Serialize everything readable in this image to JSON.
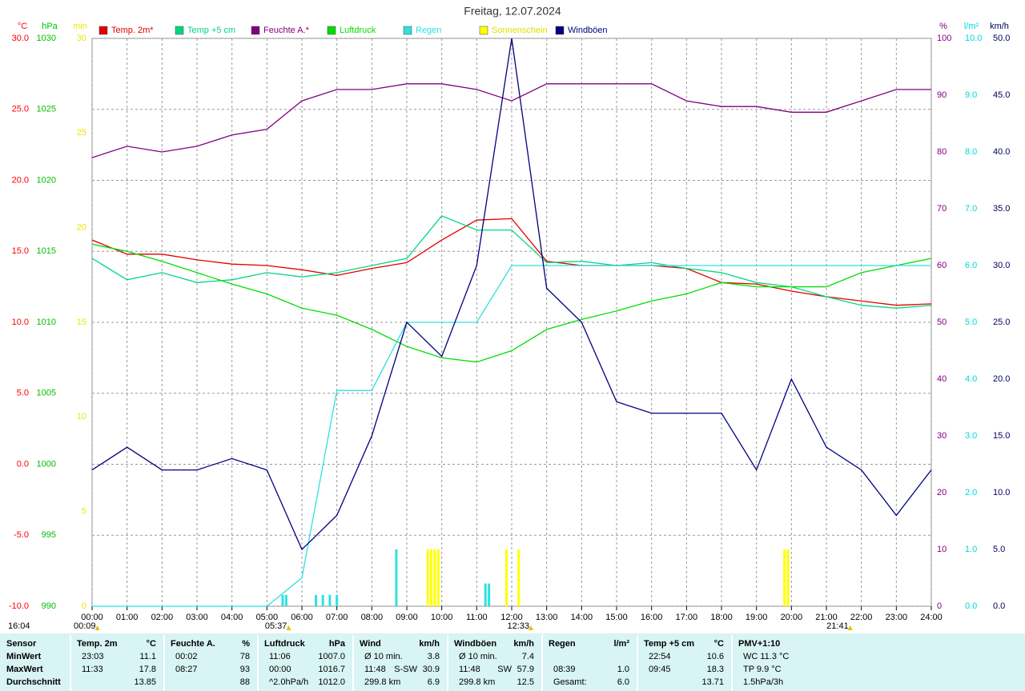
{
  "chart_data": {
    "type": "line",
    "title": "Freitag, 12.07.2024",
    "updated": "16:04",
    "grid": true,
    "xlim": [
      0,
      24
    ],
    "xticks": [
      {
        "value": 0,
        "label": "00:00"
      },
      {
        "value": 1,
        "label": "01:00"
      },
      {
        "value": 2,
        "label": "02:00"
      },
      {
        "value": 3,
        "label": "03:00"
      },
      {
        "value": 4,
        "label": "04:00"
      },
      {
        "value": 5,
        "label": "05:00"
      },
      {
        "value": 6,
        "label": "06:00"
      },
      {
        "value": 7,
        "label": "07:00"
      },
      {
        "value": 8,
        "label": "08:00"
      },
      {
        "value": 9,
        "label": "09:00"
      },
      {
        "value": 10,
        "label": "10:00"
      },
      {
        "value": 11,
        "label": "11:00"
      },
      {
        "value": 12,
        "label": "12:00"
      },
      {
        "value": 13,
        "label": "13:00"
      },
      {
        "value": 14,
        "label": "14:00"
      },
      {
        "value": 15,
        "label": "15:00"
      },
      {
        "value": 16,
        "label": "16:00"
      },
      {
        "value": 17,
        "label": "17:00"
      },
      {
        "value": 18,
        "label": "18:00"
      },
      {
        "value": 19,
        "label": "19:00"
      },
      {
        "value": 20,
        "label": "20:00"
      },
      {
        "value": 21,
        "label": "21:00"
      },
      {
        "value": 22,
        "label": "22:00"
      },
      {
        "value": 23,
        "label": "23:00"
      },
      {
        "value": 24,
        "label": "24:00"
      }
    ],
    "x": [
      0,
      1,
      2,
      3,
      4,
      5,
      6,
      7,
      8,
      9,
      10,
      11,
      12,
      13,
      14,
      15,
      16,
      17,
      18,
      19,
      20,
      21,
      22,
      23,
      24
    ],
    "markers": [
      {
        "x": 0.15,
        "label": "00:09"
      },
      {
        "x": 5.62,
        "label": "05:37"
      },
      {
        "x": 12.55,
        "label": "12:33"
      },
      {
        "x": 21.68,
        "label": "21:41"
      }
    ],
    "axes": {
      "temp": {
        "label": "°C",
        "color": "#ff0000",
        "side": "left",
        "ylim": [
          -10,
          30
        ],
        "yticks": [
          {
            "value": -10,
            "label": "-10.0"
          },
          {
            "value": -5,
            "label": "-5.0"
          },
          {
            "value": 0,
            "label": "0.0"
          },
          {
            "value": 5,
            "label": "5.0"
          },
          {
            "value": 10,
            "label": "10.0"
          },
          {
            "value": 15,
            "label": "15.0"
          },
          {
            "value": 20,
            "label": "20.0"
          },
          {
            "value": 25,
            "label": "25.0"
          },
          {
            "value": 30,
            "label": "30.0"
          }
        ]
      },
      "hpa": {
        "label": "hPa",
        "color": "#00c000",
        "side": "left",
        "ylim": [
          990,
          1030
        ],
        "yticks": [
          990,
          995,
          1000,
          1005,
          1010,
          1015,
          1020,
          1025,
          1030
        ]
      },
      "min": {
        "label": "min",
        "color": "#e8e800",
        "side": "left",
        "ylim": [
          0,
          30
        ],
        "yticks": [
          0,
          5,
          10,
          15,
          20,
          25,
          30
        ]
      },
      "pct": {
        "label": "%",
        "color": "#800080",
        "side": "right",
        "ylim": [
          0,
          100
        ],
        "yticks": [
          0,
          10,
          20,
          30,
          40,
          50,
          60,
          70,
          80,
          90,
          100
        ]
      },
      "rain": {
        "label": "l/m²",
        "color": "#00d8d8",
        "side": "right",
        "ylim": [
          0,
          10
        ],
        "yticks": [
          {
            "value": 0,
            "label": "0.0"
          },
          {
            "value": 1,
            "label": "1.0"
          },
          {
            "value": 2,
            "label": "2.0"
          },
          {
            "value": 3,
            "label": "3.0"
          },
          {
            "value": 4,
            "label": "4.0"
          },
          {
            "value": 5,
            "label": "5.0"
          },
          {
            "value": 6,
            "label": "6.0"
          },
          {
            "value": 7,
            "label": "7.0"
          },
          {
            "value": 8,
            "label": "8.0"
          },
          {
            "value": 9,
            "label": "9.0"
          },
          {
            "value": 10,
            "label": "10.0"
          }
        ]
      },
      "wind": {
        "label": "km/h",
        "color": "#000060",
        "side": "right",
        "ylim": [
          0,
          50
        ],
        "yticks": [
          {
            "value": 0,
            "label": "0.0"
          },
          {
            "value": 5,
            "label": "5.0"
          },
          {
            "value": 10,
            "label": "10.0"
          },
          {
            "value": 15,
            "label": "15.0"
          },
          {
            "value": 20,
            "label": "20.0"
          },
          {
            "value": 25,
            "label": "25.0"
          },
          {
            "value": 30,
            "label": "30.0"
          },
          {
            "value": 35,
            "label": "35.0"
          },
          {
            "value": 40,
            "label": "40.0"
          },
          {
            "value": 45,
            "label": "45.0"
          },
          {
            "value": 50,
            "label": "50.0"
          }
        ]
      }
    },
    "series": [
      {
        "name": "Temp. 2m*",
        "color": "#e00000",
        "axis": "temp",
        "values": [
          15.8,
          14.8,
          14.8,
          14.4,
          14.1,
          14.0,
          13.7,
          13.3,
          13.8,
          14.2,
          15.8,
          17.2,
          17.3,
          14.3,
          14.0,
          14.0,
          14.0,
          13.8,
          12.8,
          12.7,
          12.2,
          11.8,
          11.5,
          11.2,
          11.3
        ]
      },
      {
        "name": "Temp +5 cm",
        "color": "#00d880",
        "axis": "temp",
        "values": [
          14.5,
          13.0,
          13.5,
          12.8,
          13.0,
          13.5,
          13.2,
          13.5,
          14.0,
          14.5,
          17.5,
          16.5,
          16.5,
          14.2,
          14.3,
          14.0,
          14.2,
          13.8,
          13.5,
          12.8,
          12.5,
          11.8,
          11.2,
          11.0,
          11.2
        ]
      },
      {
        "name": "Feuchte A.*",
        "color": "#800080",
        "axis": "pct",
        "values": [
          79,
          81,
          80,
          81,
          83,
          84,
          89,
          91,
          91,
          92,
          92,
          91,
          89,
          92,
          92,
          92,
          92,
          89,
          88,
          88,
          87,
          87,
          89,
          91,
          91
        ]
      },
      {
        "name": "Luftdruck",
        "color": "#00dd00",
        "axis": "hpa",
        "values": [
          1015.5,
          1015,
          1014.3,
          1013.5,
          1012.7,
          1012,
          1011,
          1010.5,
          1009.5,
          1008.3,
          1007.5,
          1007.2,
          1008,
          1009.5,
          1010.2,
          1010.8,
          1011.5,
          1012,
          1012.8,
          1012.5,
          1012.5,
          1012.5,
          1013.5,
          1014,
          1014.5
        ]
      },
      {
        "name": "Regen",
        "color": "#30e0e0",
        "axis": "rain",
        "values": [
          0,
          0,
          0,
          0,
          0,
          0,
          0.5,
          3.8,
          3.8,
          5.0,
          5.0,
          5.0,
          6.0,
          6.0,
          6.0,
          6.0,
          6.0,
          6.0,
          6.0,
          6.0,
          6.0,
          6.0,
          6.0,
          6.0,
          6.0
        ],
        "bars_x": [
          5.45,
          5.55,
          6.4,
          6.6,
          6.8,
          7.0,
          8.7,
          11.25,
          11.35,
          11.85
        ],
        "bars": [
          0.2,
          0.2,
          0.2,
          0.2,
          0.2,
          0.2,
          1.0,
          0.4,
          0.4,
          0.2
        ]
      },
      {
        "name": "Sonnenschein",
        "color": "#ffff00",
        "axis": "min",
        "bars_x": [
          9.6,
          9.7,
          9.8,
          9.9,
          11.85,
          12.2,
          19.8,
          19.9
        ],
        "bars": [
          3,
          3,
          3,
          3,
          3,
          3,
          3,
          3
        ]
      },
      {
        "name": "Windböen",
        "color": "#000080",
        "axis": "wind",
        "values": [
          12,
          14,
          12,
          12,
          13,
          12,
          5,
          8,
          15,
          25,
          22,
          30,
          50,
          28,
          25,
          18,
          17,
          17,
          17,
          12,
          20,
          14,
          12,
          8,
          12
        ]
      }
    ]
  },
  "table": {
    "columns": [
      {
        "name": "Sensor",
        "cells": [
          {
            "l": "MinWert"
          },
          {
            "l": "MaxWert"
          },
          {
            "l": "Durchschnitt"
          }
        ]
      },
      {
        "name": "Temp. 2m",
        "unit": "°C",
        "cells": [
          {
            "l": "23:03",
            "r": "11.1"
          },
          {
            "l": "11:33",
            "r": "17.8"
          },
          {
            "r": "13.85"
          }
        ]
      },
      {
        "name": "Feuchte A.",
        "unit": "%",
        "cells": [
          {
            "l": "00:02",
            "r": "78"
          },
          {
            "l": "08:27",
            "r": "93"
          },
          {
            "r": "88"
          }
        ]
      },
      {
        "name": "Luftdruck",
        "unit": "hPa",
        "cells": [
          {
            "l": "11:06",
            "r": "1007.0"
          },
          {
            "l": "00:00",
            "r": "1016.7"
          },
          {
            "l": "^2.0hPa/h",
            "r": "1012.0"
          }
        ]
      },
      {
        "name": "Wind",
        "unit": "km/h",
        "cells": [
          {
            "l": "Ø 10 min.",
            "r": "3.8"
          },
          {
            "l": "11:48",
            "m": "S-SW",
            "r": "30.9"
          },
          {
            "l": "299.8 km",
            "r": "6.9"
          }
        ]
      },
      {
        "name": "Windböen",
        "unit": "km/h",
        "cells": [
          {
            "l": "Ø 10 min.",
            "r": "7.4"
          },
          {
            "l": "11:48",
            "m": "SW",
            "r": "57.9"
          },
          {
            "l": "299.8 km",
            "r": "12.5"
          }
        ]
      },
      {
        "name": "Regen",
        "unit": "l/m²",
        "cells": [
          {},
          {
            "l": "08:39",
            "r": "1.0"
          },
          {
            "l": "Gesamt:",
            "r": "6.0"
          }
        ]
      },
      {
        "name": "Temp +5 cm",
        "unit": "°C",
        "cells": [
          {
            "l": "22:54",
            "r": "10.6"
          },
          {
            "l": "09:45",
            "r": "18.3"
          },
          {
            "r": "13.71"
          }
        ]
      },
      {
        "name": "PMV+1:10",
        "cells": [
          {
            "l": "WC 11.3 °C"
          },
          {
            "l": "TP 9.9 °C"
          },
          {
            "l": "1.5hPa/3h"
          }
        ]
      }
    ]
  }
}
